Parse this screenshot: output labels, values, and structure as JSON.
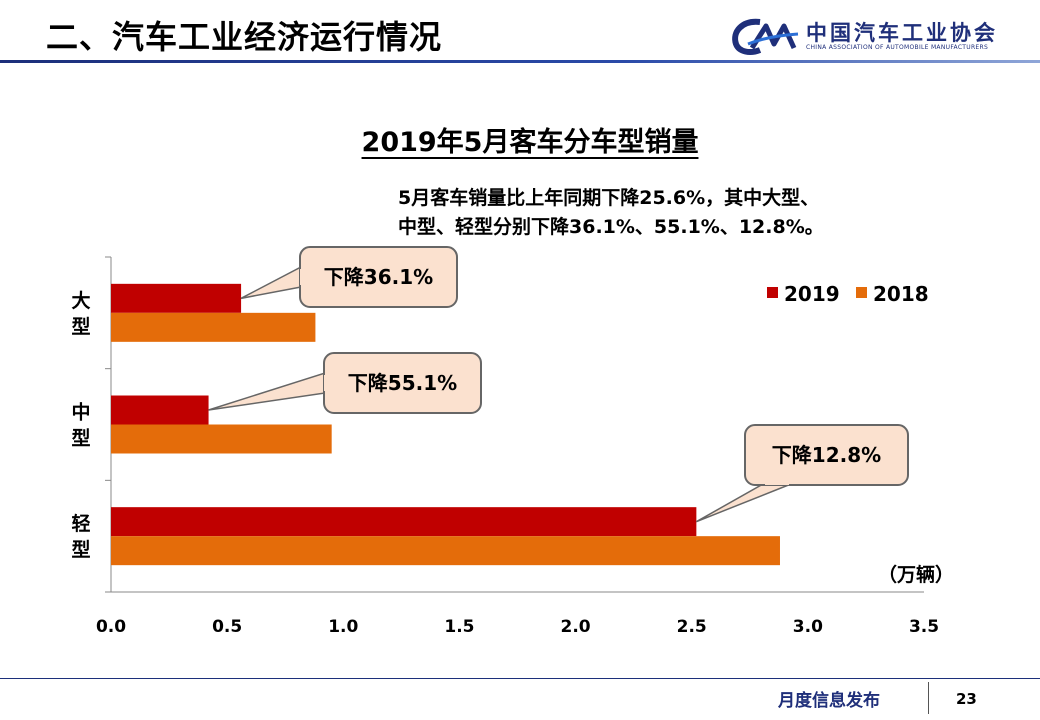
{
  "header": {
    "title": "二、汽车工业经济运行情况",
    "logo_cn": "中国汽车工业协会",
    "logo_en": "CHINA ASSOCIATION OF AUTOMOBILE MANUFACTURERS"
  },
  "note": "5月客车销量比上年同期下降25.6%，其中大型、\n中型、轻型分别下降36.1%、55.1%、12.8%。",
  "footer": {
    "text": "月度信息发布",
    "page": "23"
  },
  "colors": {
    "series_2019": "#c00000",
    "series_2018": "#e46c0a",
    "callout_fill": "#fbe1cf"
  },
  "chart_data": {
    "type": "bar",
    "orientation": "horizontal",
    "title": "2019年5月客车分车型销量",
    "categories": [
      "大型",
      "中型",
      "轻型"
    ],
    "series": [
      {
        "name": "2019",
        "values": [
          0.56,
          0.42,
          2.52
        ]
      },
      {
        "name": "2018",
        "values": [
          0.88,
          0.95,
          2.88
        ]
      }
    ],
    "xlim": [
      0,
      3.5
    ],
    "xticks": [
      "0.0",
      "0.5",
      "1.0",
      "1.5",
      "2.0",
      "2.5",
      "3.0",
      "3.5"
    ],
    "unit": "（万辆）",
    "legend_position": "top-right",
    "annotations": [
      "下降36.1%",
      "下降55.1%",
      "下降12.8%"
    ],
    "grid": false
  }
}
